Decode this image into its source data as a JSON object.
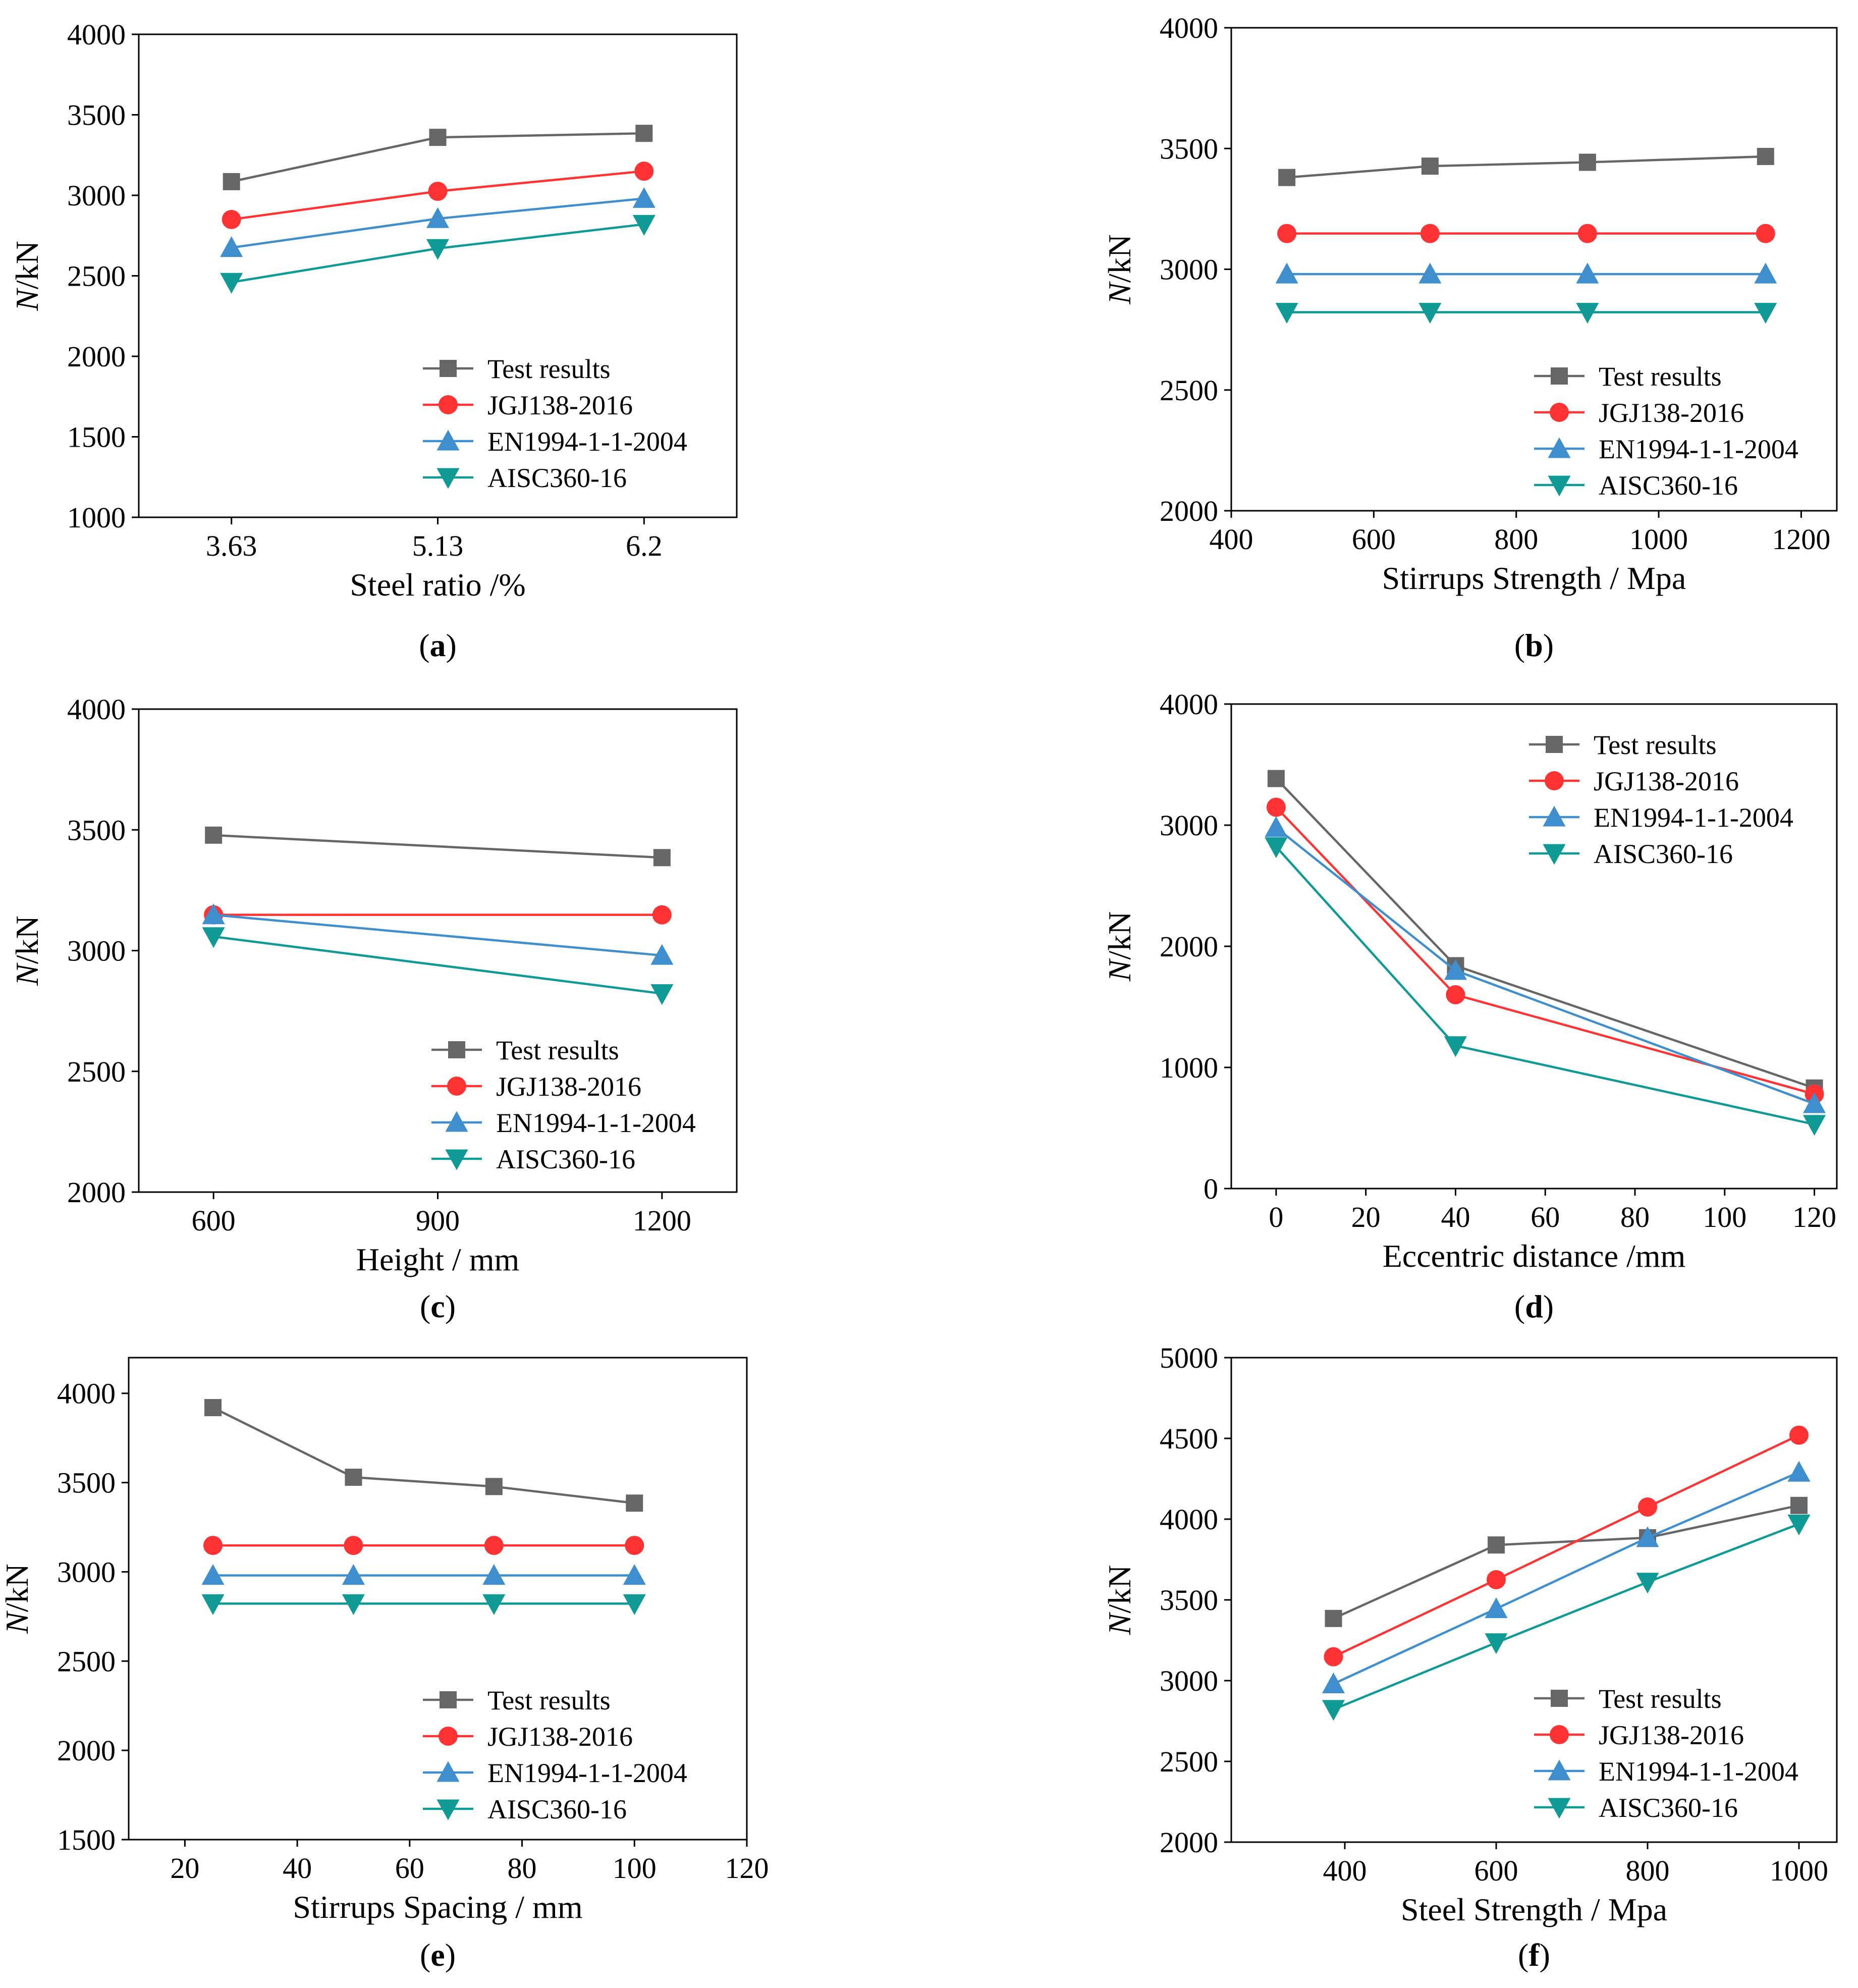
{
  "series_style": {
    "Test results": {
      "color": "#666666",
      "marker": "square"
    },
    "JGJ138-2016": {
      "color": "#ff3333",
      "marker": "circle"
    },
    "EN1994-1-1-2004": {
      "color": "#3f8fce",
      "marker": "triangle-up"
    },
    "AISC360-16": {
      "color": "#0f9a96",
      "marker": "triangle-down"
    }
  },
  "chart_data": [
    {
      "id": "a",
      "type": "line",
      "panel_label": "(a)",
      "x_scale": "categorical",
      "xlabel": "Steel ratio /%",
      "ylabel": "N/kN",
      "ylabel_italic": "N",
      "ylabel_rest": "/kN",
      "ylim": [
        1000,
        4000
      ],
      "yticks": [
        1000,
        1500,
        2000,
        2500,
        3000,
        3500,
        4000
      ],
      "categories": [
        "3.63",
        "5.13",
        "6.2"
      ],
      "legend_position": "bottom-right",
      "series": [
        {
          "name": "Test results",
          "values": [
            3085,
            3360,
            3385
          ]
        },
        {
          "name": "JGJ138-2016",
          "values": [
            2850,
            3025,
            3150
          ]
        },
        {
          "name": "EN1994-1-1-2004",
          "values": [
            2675,
            2855,
            2980
          ]
        },
        {
          "name": "AISC360-16",
          "values": [
            2460,
            2670,
            2820
          ]
        }
      ]
    },
    {
      "id": "b",
      "type": "line",
      "panel_label": "(b)",
      "x_scale": "linear",
      "xlabel": "Stirrups Strength / Mpa",
      "ylabel": "N/kN",
      "ylabel_italic": "N",
      "ylabel_rest": "/kN",
      "xlim": [
        400,
        1250
      ],
      "xticks": [
        400,
        600,
        800,
        1000,
        1200
      ],
      "ylim": [
        2000,
        4000
      ],
      "yticks": [
        2000,
        2500,
        3000,
        3500,
        4000
      ],
      "legend_position": "bottom-right",
      "series": [
        {
          "name": "Test results",
          "x": [
            478,
            679,
            900,
            1150
          ],
          "values": [
            3380,
            3427,
            3443,
            3467
          ]
        },
        {
          "name": "JGJ138-2016",
          "x": [
            478,
            679,
            900,
            1150
          ],
          "values": [
            3148,
            3148,
            3148,
            3148
          ]
        },
        {
          "name": "EN1994-1-1-2004",
          "x": [
            478,
            679,
            900,
            1150
          ],
          "values": [
            2980,
            2980,
            2980,
            2980
          ]
        },
        {
          "name": "AISC360-16",
          "x": [
            478,
            679,
            900,
            1150
          ],
          "values": [
            2822,
            2822,
            2822,
            2822
          ]
        }
      ]
    },
    {
      "id": "c",
      "type": "line",
      "panel_label": "(c)",
      "x_scale": "linear",
      "xlabel": "Height / mm",
      "ylabel": "N/kN",
      "ylabel_italic": "N",
      "ylabel_rest": "/kN",
      "xlim": [
        500,
        1300
      ],
      "xticks": [
        600,
        900,
        1200
      ],
      "ylim": [
        2000,
        4000
      ],
      "yticks": [
        2000,
        2500,
        3000,
        3500,
        4000
      ],
      "legend_position": "bottom-right",
      "series": [
        {
          "name": "Test results",
          "x": [
            600,
            1200
          ],
          "values": [
            3478,
            3385
          ]
        },
        {
          "name": "JGJ138-2016",
          "x": [
            600,
            1200
          ],
          "values": [
            3148,
            3148
          ]
        },
        {
          "name": "EN1994-1-1-2004",
          "x": [
            600,
            1200
          ],
          "values": [
            3148,
            2980
          ]
        },
        {
          "name": "AISC360-16",
          "x": [
            600,
            1200
          ],
          "values": [
            3058,
            2822
          ]
        }
      ]
    },
    {
      "id": "d",
      "type": "line",
      "panel_label": "(d)",
      "x_scale": "linear",
      "xlabel": "Eccentric distance /mm",
      "ylabel": "N/kN",
      "ylabel_italic": "N",
      "ylabel_rest": "/kN",
      "xlim": [
        -10,
        125
      ],
      "xticks": [
        0,
        20,
        40,
        60,
        80,
        100,
        120
      ],
      "ylim": [
        0,
        4000
      ],
      "yticks": [
        0,
        1000,
        2000,
        3000,
        4000
      ],
      "legend_position": "top-right",
      "series": [
        {
          "name": "Test results",
          "x": [
            0,
            40,
            120
          ],
          "values": [
            3385,
            1840,
            830
          ]
        },
        {
          "name": "JGJ138-2016",
          "x": [
            0,
            40,
            120
          ],
          "values": [
            3148,
            1600,
            780
          ]
        },
        {
          "name": "EN1994-1-1-2004",
          "x": [
            0,
            40,
            120
          ],
          "values": [
            2980,
            1800,
            700
          ]
        },
        {
          "name": "AISC360-16",
          "x": [
            0,
            40,
            120
          ],
          "values": [
            2822,
            1180,
            530
          ]
        }
      ]
    },
    {
      "id": "e",
      "type": "line",
      "panel_label": "(e)",
      "x_scale": "linear",
      "xlabel": "Stirrups Spacing / mm",
      "ylabel": "N/kN",
      "ylabel_italic": "N",
      "ylabel_rest": "/kN",
      "xlim": [
        10,
        120
      ],
      "xticks": [
        20,
        40,
        60,
        80,
        100,
        120
      ],
      "ylim": [
        1500,
        4200
      ],
      "yticks": [
        1500,
        2000,
        2500,
        3000,
        3500,
        4000
      ],
      "legend_position": "bottom-right",
      "series": [
        {
          "name": "Test results",
          "x": [
            25,
            50,
            75,
            100
          ],
          "values": [
            3920,
            3530,
            3478,
            3385
          ]
        },
        {
          "name": "JGJ138-2016",
          "x": [
            25,
            50,
            75,
            100
          ],
          "values": [
            3148,
            3148,
            3148,
            3148
          ]
        },
        {
          "name": "EN1994-1-1-2004",
          "x": [
            25,
            50,
            75,
            100
          ],
          "values": [
            2980,
            2980,
            2980,
            2980
          ]
        },
        {
          "name": "AISC360-16",
          "x": [
            25,
            50,
            75,
            100
          ],
          "values": [
            2822,
            2822,
            2822,
            2822
          ]
        }
      ]
    },
    {
      "id": "f",
      "type": "line",
      "panel_label": "(f)",
      "x_scale": "linear",
      "xlabel": "Steel Strength / Mpa",
      "ylabel": "N/kN",
      "ylabel_italic": "N",
      "ylabel_rest": "/kN",
      "xlim": [
        250,
        1050
      ],
      "xticks": [
        400,
        600,
        800,
        1000
      ],
      "ylim": [
        2000,
        5000
      ],
      "yticks": [
        2000,
        2500,
        3000,
        3500,
        4000,
        4500,
        5000
      ],
      "legend_position": "bottom-right",
      "series": [
        {
          "name": "Test results",
          "x": [
            385,
            600,
            800,
            1000
          ],
          "values": [
            3385,
            3840,
            3885,
            4085
          ]
        },
        {
          "name": "JGJ138-2016",
          "x": [
            385,
            600,
            800,
            1000
          ],
          "values": [
            3148,
            3625,
            4075,
            4520
          ]
        },
        {
          "name": "EN1994-1-1-2004",
          "x": [
            385,
            600,
            800,
            1000
          ],
          "values": [
            2980,
            3445,
            3885,
            4290
          ]
        },
        {
          "name": "AISC360-16",
          "x": [
            385,
            600,
            800,
            1000
          ],
          "values": [
            2822,
            3235,
            3610,
            3970
          ]
        }
      ]
    }
  ]
}
